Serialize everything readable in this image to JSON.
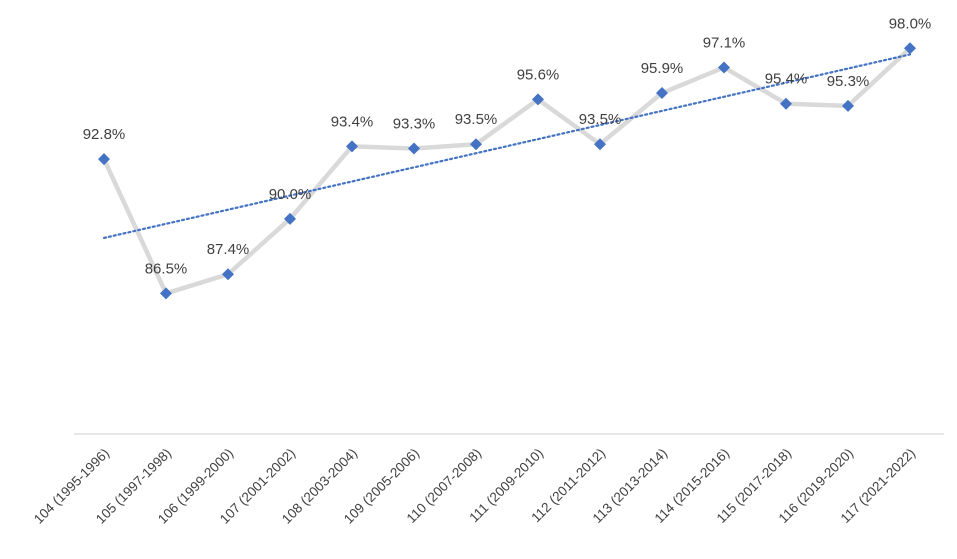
{
  "chart_data": {
    "type": "line",
    "title": "",
    "xlabel": "",
    "ylabel": "",
    "categories": [
      "104 (1995-1996)",
      "105 (1997-1998)",
      "106 (1999-2000)",
      "107 (2001-2002)",
      "108 (2003-2004)",
      "109 (2005-2006)",
      "110 (2007-2008)",
      "111 (2009-2010)",
      "112 (2011-2012)",
      "113 (2013-2014)",
      "114 (2015-2016)",
      "115 (2017-2018)",
      "116 (2019-2020)",
      "117 (2021-2022)"
    ],
    "series": [
      {
        "values": [
          92.8,
          86.5,
          87.4,
          90.0,
          93.4,
          93.3,
          93.5,
          95.6,
          93.5,
          95.9,
          97.1,
          95.4,
          95.3,
          98.0
        ],
        "labels": [
          "92.8%",
          "86.5%",
          "87.4%",
          "90.0%",
          "93.4%",
          "93.3%",
          "93.5%",
          "95.6%",
          "93.5%",
          "95.9%",
          "97.1%",
          "95.4%",
          "95.3%",
          "98.0%"
        ]
      }
    ],
    "trendline": {
      "type": "linear",
      "style": "dotted"
    },
    "ylim": [
      80,
      98.2
    ],
    "y_axis_visible": false,
    "grid": false,
    "legend": "none",
    "colors": {
      "line": "#d9d9d9",
      "marker": "#4472c4",
      "trendline": "#4472c4",
      "axis": "#d9d9d9",
      "text": "#404040"
    }
  }
}
